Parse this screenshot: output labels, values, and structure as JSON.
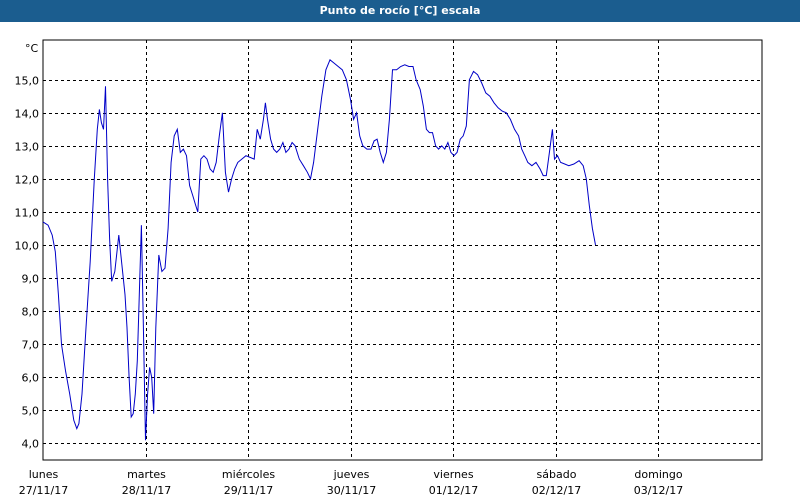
{
  "title": "Punto de rocío [°C] escala",
  "colors": {
    "title_bar": "#1b5d8f",
    "line": "#0000c8",
    "grid": "#000000"
  },
  "chart_data": {
    "type": "line",
    "title": "Punto de rocío [°C] escala",
    "ylabel": "°C",
    "xlabel": "",
    "ylim": [
      3.5,
      16.2
    ],
    "xlim": [
      0,
      7
    ],
    "grid": true,
    "y_ticks": [
      "15,0",
      "14,0",
      "13,0",
      "12,0",
      "11,0",
      "10,0",
      "9,0",
      "8,0",
      "7,0",
      "6,0",
      "5,0",
      "4,0"
    ],
    "y_tick_values": [
      15,
      14,
      13,
      12,
      11,
      10,
      9,
      8,
      7,
      6,
      5,
      4
    ],
    "x_ticks": [
      {
        "day": "lunes",
        "date": "27/11/17",
        "x": 0
      },
      {
        "day": "martes",
        "date": "28/11/17",
        "x": 1
      },
      {
        "day": "miércoles",
        "date": "29/11/17",
        "x": 2
      },
      {
        "day": "jueves",
        "date": "30/11/17",
        "x": 3
      },
      {
        "day": "viernes",
        "date": "01/12/17",
        "x": 4
      },
      {
        "day": "sábado",
        "date": "02/12/17",
        "x": 5
      },
      {
        "day": "domingo",
        "date": "03/12/17",
        "x": 6
      }
    ],
    "series": [
      {
        "values": [
          [
            0.0,
            10.7
          ],
          [
            0.05,
            10.6
          ],
          [
            0.09,
            10.3
          ],
          [
            0.12,
            9.8
          ],
          [
            0.15,
            8.5
          ],
          [
            0.18,
            7.0
          ],
          [
            0.22,
            6.2
          ],
          [
            0.26,
            5.5
          ],
          [
            0.3,
            4.7
          ],
          [
            0.33,
            4.45
          ],
          [
            0.35,
            4.6
          ],
          [
            0.38,
            5.5
          ],
          [
            0.42,
            7.5
          ],
          [
            0.46,
            9.5
          ],
          [
            0.5,
            12.0
          ],
          [
            0.53,
            13.5
          ],
          [
            0.55,
            14.1
          ],
          [
            0.57,
            13.7
          ],
          [
            0.59,
            13.5
          ],
          [
            0.61,
            14.8
          ],
          [
            0.63,
            12.0
          ],
          [
            0.65,
            10.2
          ],
          [
            0.67,
            8.9
          ],
          [
            0.7,
            9.2
          ],
          [
            0.74,
            10.3
          ],
          [
            0.77,
            9.4
          ],
          [
            0.8,
            8.5
          ],
          [
            0.82,
            7.5
          ],
          [
            0.84,
            6.0
          ],
          [
            0.86,
            4.8
          ],
          [
            0.88,
            4.9
          ],
          [
            0.9,
            5.5
          ],
          [
            0.92,
            6.5
          ],
          [
            0.94,
            8.5
          ],
          [
            0.96,
            10.6
          ],
          [
            0.98,
            7.5
          ],
          [
            1.0,
            4.1
          ],
          [
            1.02,
            5.5
          ],
          [
            1.04,
            6.3
          ],
          [
            1.06,
            6.0
          ],
          [
            1.08,
            4.9
          ],
          [
            1.1,
            7.5
          ],
          [
            1.13,
            9.7
          ],
          [
            1.16,
            9.2
          ],
          [
            1.19,
            9.3
          ],
          [
            1.22,
            10.5
          ],
          [
            1.25,
            12.5
          ],
          [
            1.28,
            13.3
          ],
          [
            1.31,
            13.5
          ],
          [
            1.34,
            12.8
          ],
          [
            1.37,
            12.9
          ],
          [
            1.4,
            12.7
          ],
          [
            1.43,
            11.8
          ],
          [
            1.46,
            11.5
          ],
          [
            1.49,
            11.2
          ],
          [
            1.51,
            11.0
          ],
          [
            1.54,
            12.6
          ],
          [
            1.57,
            12.7
          ],
          [
            1.6,
            12.6
          ],
          [
            1.63,
            12.3
          ],
          [
            1.66,
            12.2
          ],
          [
            1.69,
            12.5
          ],
          [
            1.72,
            13.3
          ],
          [
            1.75,
            14.0
          ],
          [
            1.78,
            12.2
          ],
          [
            1.81,
            11.6
          ],
          [
            1.84,
            12.0
          ],
          [
            1.87,
            12.3
          ],
          [
            1.9,
            12.5
          ],
          [
            1.94,
            12.6
          ],
          [
            1.98,
            12.7
          ],
          [
            2.02,
            12.65
          ],
          [
            2.06,
            12.6
          ],
          [
            2.09,
            13.5
          ],
          [
            2.12,
            13.2
          ],
          [
            2.15,
            13.8
          ],
          [
            2.17,
            14.3
          ],
          [
            2.19,
            13.8
          ],
          [
            2.22,
            13.2
          ],
          [
            2.25,
            12.9
          ],
          [
            2.28,
            12.8
          ],
          [
            2.31,
            12.9
          ],
          [
            2.34,
            13.1
          ],
          [
            2.37,
            12.8
          ],
          [
            2.4,
            12.9
          ],
          [
            2.43,
            13.1
          ],
          [
            2.46,
            13.0
          ],
          [
            2.5,
            12.6
          ],
          [
            2.54,
            12.4
          ],
          [
            2.58,
            12.2
          ],
          [
            2.61,
            12.0
          ],
          [
            2.64,
            12.5
          ],
          [
            2.68,
            13.5
          ],
          [
            2.72,
            14.5
          ],
          [
            2.76,
            15.3
          ],
          [
            2.8,
            15.6
          ],
          [
            2.84,
            15.5
          ],
          [
            2.88,
            15.4
          ],
          [
            2.92,
            15.3
          ],
          [
            2.96,
            15.0
          ],
          [
            3.0,
            14.4
          ],
          [
            3.03,
            13.8
          ],
          [
            3.06,
            14.0
          ],
          [
            3.09,
            13.3
          ],
          [
            3.12,
            13.0
          ],
          [
            3.16,
            12.9
          ],
          [
            3.2,
            12.9
          ],
          [
            3.23,
            13.15
          ],
          [
            3.26,
            13.2
          ],
          [
            3.29,
            12.8
          ],
          [
            3.32,
            12.5
          ],
          [
            3.35,
            12.8
          ],
          [
            3.38,
            13.8
          ],
          [
            3.41,
            15.3
          ],
          [
            3.45,
            15.3
          ],
          [
            3.49,
            15.4
          ],
          [
            3.53,
            15.45
          ],
          [
            3.57,
            15.4
          ],
          [
            3.61,
            15.4
          ],
          [
            3.64,
            15.0
          ],
          [
            3.68,
            14.7
          ],
          [
            3.71,
            14.2
          ],
          [
            3.74,
            13.5
          ],
          [
            3.77,
            13.4
          ],
          [
            3.8,
            13.4
          ],
          [
            3.83,
            13.0
          ],
          [
            3.86,
            12.9
          ],
          [
            3.89,
            13.0
          ],
          [
            3.92,
            12.9
          ],
          [
            3.95,
            13.1
          ],
          [
            3.98,
            12.8
          ],
          [
            4.01,
            12.7
          ],
          [
            4.04,
            12.8
          ],
          [
            4.07,
            13.2
          ],
          [
            4.1,
            13.3
          ],
          [
            4.13,
            13.6
          ],
          [
            4.16,
            15.0
          ],
          [
            4.2,
            15.25
          ],
          [
            4.24,
            15.15
          ],
          [
            4.28,
            14.9
          ],
          [
            4.32,
            14.6
          ],
          [
            4.36,
            14.5
          ],
          [
            4.4,
            14.3
          ],
          [
            4.44,
            14.15
          ],
          [
            4.48,
            14.05
          ],
          [
            4.52,
            14.0
          ],
          [
            4.56,
            13.8
          ],
          [
            4.6,
            13.5
          ],
          [
            4.64,
            13.3
          ],
          [
            4.67,
            12.9
          ],
          [
            4.7,
            12.7
          ],
          [
            4.73,
            12.5
          ],
          [
            4.77,
            12.4
          ],
          [
            4.81,
            12.5
          ],
          [
            4.85,
            12.3
          ],
          [
            4.88,
            12.1
          ],
          [
            4.91,
            12.1
          ],
          [
            4.94,
            12.8
          ],
          [
            4.97,
            13.5
          ],
          [
            4.99,
            12.6
          ],
          [
            5.02,
            12.7
          ],
          [
            5.05,
            12.5
          ],
          [
            5.09,
            12.45
          ],
          [
            5.13,
            12.4
          ],
          [
            5.18,
            12.45
          ],
          [
            5.23,
            12.55
          ],
          [
            5.27,
            12.4
          ],
          [
            5.3,
            12.0
          ],
          [
            5.33,
            11.2
          ],
          [
            5.36,
            10.5
          ],
          [
            5.39,
            10.0
          ]
        ]
      }
    ]
  }
}
